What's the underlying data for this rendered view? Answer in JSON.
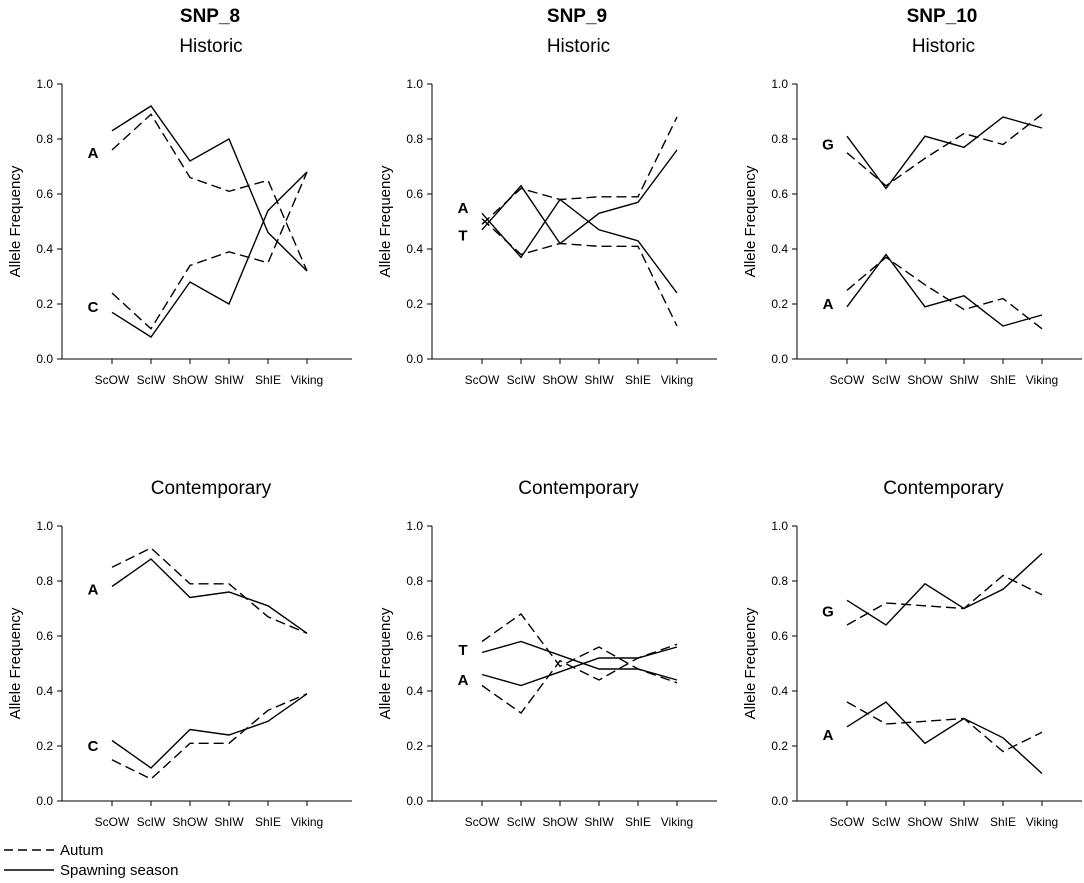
{
  "legend": {
    "autumn_label": "Autum",
    "spawning_label": "Spawning season"
  },
  "snp_titles": [
    "SNP_8",
    "SNP_9",
    "SNP_10"
  ],
  "chart_data": [
    {
      "type": "line",
      "snp": "SNP_8",
      "title": "Historic",
      "categories": [
        "ScOW",
        "ScIW",
        "ShOW",
        "ShIW",
        "ShIE",
        "Viking"
      ],
      "xlabel": "",
      "ylabel": "Allele Frequency",
      "ylim": [
        0,
        1
      ],
      "yticks": [
        "0.0",
        "0.2",
        "0.4",
        "0.6",
        "0.8",
        "1.0"
      ],
      "series": [
        {
          "name": "A",
          "season": "Autum",
          "values": [
            0.76,
            0.89,
            0.66,
            0.61,
            0.65,
            0.32
          ]
        },
        {
          "name": "A",
          "season": "Spawning season",
          "values": [
            0.83,
            0.92,
            0.72,
            0.8,
            0.46,
            0.32
          ]
        },
        {
          "name": "C",
          "season": "Autum",
          "values": [
            0.24,
            0.11,
            0.34,
            0.39,
            0.35,
            0.68
          ]
        },
        {
          "name": "C",
          "season": "Spawning season",
          "values": [
            0.17,
            0.08,
            0.28,
            0.2,
            0.54,
            0.68
          ]
        }
      ],
      "allele_labels": [
        {
          "text": "A",
          "value": 0.75
        },
        {
          "text": "C",
          "value": 0.19
        }
      ]
    },
    {
      "type": "line",
      "snp": "SNP_9",
      "title": "Historic",
      "categories": [
        "ScOW",
        "ScIW",
        "ShOW",
        "ShIW",
        "ShIE",
        "Viking"
      ],
      "xlabel": "",
      "ylabel": "Allele Frequency",
      "ylim": [
        0,
        1
      ],
      "yticks": [
        "0.0",
        "0.2",
        "0.4",
        "0.6",
        "0.8",
        "1.0"
      ],
      "series": [
        {
          "name": "A",
          "season": "Autum",
          "values": [
            0.49,
            0.62,
            0.58,
            0.59,
            0.59,
            0.88
          ]
        },
        {
          "name": "A",
          "season": "Spawning season",
          "values": [
            0.47,
            0.63,
            0.42,
            0.53,
            0.57,
            0.76
          ]
        },
        {
          "name": "T",
          "season": "Autum",
          "values": [
            0.51,
            0.38,
            0.42,
            0.41,
            0.41,
            0.12
          ]
        },
        {
          "name": "T",
          "season": "Spawning season",
          "values": [
            0.53,
            0.37,
            0.58,
            0.47,
            0.43,
            0.24
          ]
        }
      ],
      "allele_labels": [
        {
          "text": "A",
          "value": 0.55
        },
        {
          "text": "T",
          "value": 0.45
        }
      ]
    },
    {
      "type": "line",
      "snp": "SNP_10",
      "title": "Historic",
      "categories": [
        "ScOW",
        "ScIW",
        "ShOW",
        "ShIW",
        "ShIE",
        "Viking"
      ],
      "xlabel": "",
      "ylabel": "Allele Frequency",
      "ylim": [
        0,
        1
      ],
      "yticks": [
        "0.0",
        "0.2",
        "0.4",
        "0.6",
        "0.8",
        "1.0"
      ],
      "series": [
        {
          "name": "G",
          "season": "Autum",
          "values": [
            0.75,
            0.63,
            0.73,
            0.82,
            0.78,
            0.89
          ]
        },
        {
          "name": "G",
          "season": "Spawning season",
          "values": [
            0.81,
            0.62,
            0.81,
            0.77,
            0.88,
            0.84
          ]
        },
        {
          "name": "A",
          "season": "Autum",
          "values": [
            0.25,
            0.37,
            0.27,
            0.18,
            0.22,
            0.11
          ]
        },
        {
          "name": "A",
          "season": "Spawning season",
          "values": [
            0.19,
            0.38,
            0.19,
            0.23,
            0.12,
            0.16
          ]
        }
      ],
      "allele_labels": [
        {
          "text": "G",
          "value": 0.78
        },
        {
          "text": "A",
          "value": 0.2
        }
      ]
    },
    {
      "type": "line",
      "snp": "SNP_8",
      "title": "Contemporary",
      "categories": [
        "ScOW",
        "ScIW",
        "ShOW",
        "ShIW",
        "ShIE",
        "Viking"
      ],
      "xlabel": "",
      "ylabel": "Allele Frequency",
      "ylim": [
        0,
        1
      ],
      "yticks": [
        "0.0",
        "0.2",
        "0.4",
        "0.6",
        "0.8",
        "1.0"
      ],
      "series": [
        {
          "name": "A",
          "season": "Autum",
          "values": [
            0.85,
            0.92,
            0.79,
            0.79,
            0.67,
            0.61
          ]
        },
        {
          "name": "A",
          "season": "Spawning season",
          "values": [
            0.78,
            0.88,
            0.74,
            0.76,
            0.71,
            0.61
          ]
        },
        {
          "name": "C",
          "season": "Autum",
          "values": [
            0.15,
            0.08,
            0.21,
            0.21,
            0.33,
            0.39
          ]
        },
        {
          "name": "C",
          "season": "Spawning season",
          "values": [
            0.22,
            0.12,
            0.26,
            0.24,
            0.29,
            0.39
          ]
        }
      ],
      "allele_labels": [
        {
          "text": "A",
          "value": 0.77
        },
        {
          "text": "C",
          "value": 0.2
        }
      ]
    },
    {
      "type": "line",
      "snp": "SNP_9",
      "title": "Contemporary",
      "categories": [
        "ScOW",
        "ScIW",
        "ShOW",
        "ShIW",
        "ShIE",
        "Viking"
      ],
      "xlabel": "",
      "ylabel": "Allele Frequency",
      "ylim": [
        0,
        1
      ],
      "yticks": [
        "0.0",
        "0.2",
        "0.4",
        "0.6",
        "0.8",
        "1.0"
      ],
      "series": [
        {
          "name": "T",
          "season": "Autum",
          "values": [
            0.58,
            0.68,
            0.49,
            0.56,
            0.48,
            0.43
          ]
        },
        {
          "name": "T",
          "season": "Spawning season",
          "values": [
            0.54,
            0.58,
            0.53,
            0.48,
            0.48,
            0.44
          ]
        },
        {
          "name": "A",
          "season": "Autum",
          "values": [
            0.42,
            0.32,
            0.51,
            0.44,
            0.52,
            0.57
          ]
        },
        {
          "name": "A",
          "season": "Spawning season",
          "values": [
            0.46,
            0.42,
            0.47,
            0.52,
            0.52,
            0.56
          ]
        }
      ],
      "allele_labels": [
        {
          "text": "T",
          "value": 0.55
        },
        {
          "text": "A",
          "value": 0.44
        }
      ]
    },
    {
      "type": "line",
      "snp": "SNP_10",
      "title": "Contemporary",
      "categories": [
        "ScOW",
        "ScIW",
        "ShOW",
        "ShIW",
        "ShIE",
        "Viking"
      ],
      "xlabel": "",
      "ylabel": "Allele Frequency",
      "ylim": [
        0,
        1
      ],
      "yticks": [
        "0.0",
        "0.2",
        "0.4",
        "0.6",
        "0.8",
        "1.0"
      ],
      "series": [
        {
          "name": "G",
          "season": "Autum",
          "values": [
            0.64,
            0.72,
            0.71,
            0.7,
            0.82,
            0.75
          ]
        },
        {
          "name": "G",
          "season": "Spawning season",
          "values": [
            0.73,
            0.64,
            0.79,
            0.7,
            0.77,
            0.9
          ]
        },
        {
          "name": "A",
          "season": "Autum",
          "values": [
            0.36,
            0.28,
            0.29,
            0.3,
            0.18,
            0.25
          ]
        },
        {
          "name": "A",
          "season": "Spawning season",
          "values": [
            0.27,
            0.36,
            0.21,
            0.3,
            0.23,
            0.1
          ]
        }
      ],
      "allele_labels": [
        {
          "text": "G",
          "value": 0.69
        },
        {
          "text": "A",
          "value": 0.24
        }
      ]
    }
  ]
}
